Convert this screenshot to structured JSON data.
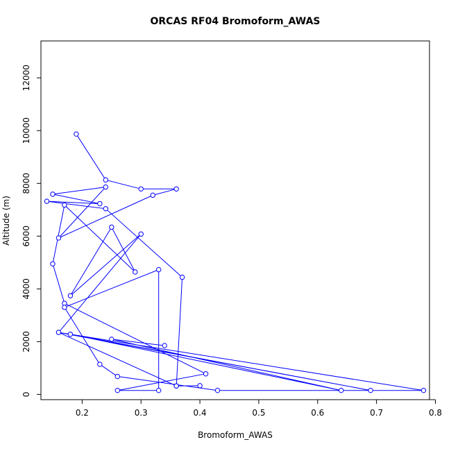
{
  "chart_data": {
    "type": "line",
    "title": "ORCAS RF04 Bromoform_AWAS",
    "xlabel": "Bromoform_AWAS",
    "ylabel": "Altitude (m)",
    "xlim": [
      0.13,
      0.79
    ],
    "ylim": [
      -200,
      13400
    ],
    "xticks": [
      0.2,
      0.3,
      0.4,
      0.5,
      0.6,
      0.7,
      0.8
    ],
    "yticks": [
      0,
      2000,
      4000,
      6000,
      8000,
      10000,
      12000
    ],
    "xtick_labels": [
      "0.2",
      "0.3",
      "0.4",
      "0.5",
      "0.6",
      "0.7",
      "0.8"
    ],
    "ytick_labels": [
      "0",
      "2000",
      "4000",
      "6000",
      "8000",
      "10000",
      "12000"
    ],
    "grid": false,
    "legend": "none",
    "series": [
      {
        "color": "#0000ff",
        "marker": "open-circle",
        "x": [
          0.19,
          0.24,
          0.3,
          0.36,
          0.32,
          0.16,
          0.24,
          0.15,
          0.23,
          0.14,
          0.24,
          0.37,
          0.36,
          0.4,
          0.36,
          0.16,
          0.3,
          0.18,
          0.25,
          0.29,
          0.17,
          0.15,
          0.17,
          0.41,
          0.26,
          0.33,
          0.33,
          0.17,
          0.23,
          0.26,
          0.43,
          0.78,
          0.16,
          0.69,
          0.18,
          0.64,
          0.25,
          0.34
        ],
        "y": [
          9870,
          8130,
          7790,
          7790,
          7550,
          5930,
          7860,
          7590,
          7230,
          7320,
          7040,
          4440,
          320,
          330,
          320,
          2350,
          6080,
          3740,
          6340,
          4640,
          7180,
          4950,
          3450,
          780,
          150,
          150,
          4730,
          3300,
          1140,
          680,
          150,
          150,
          2350,
          150,
          2280,
          150,
          2090,
          1850
        ]
      }
    ]
  }
}
